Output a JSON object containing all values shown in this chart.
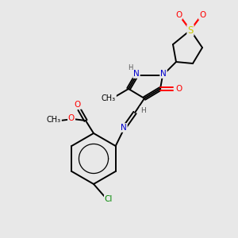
{
  "bg_color": "#e8e8e8",
  "atom_colors": {
    "C": "#000000",
    "N": "#0000cc",
    "O": "#ff0000",
    "S": "#cccc00",
    "Cl": "#008800",
    "H": "#555555"
  },
  "bond_color": "#000000",
  "figsize": [
    3.0,
    3.0
  ],
  "dpi": 100
}
